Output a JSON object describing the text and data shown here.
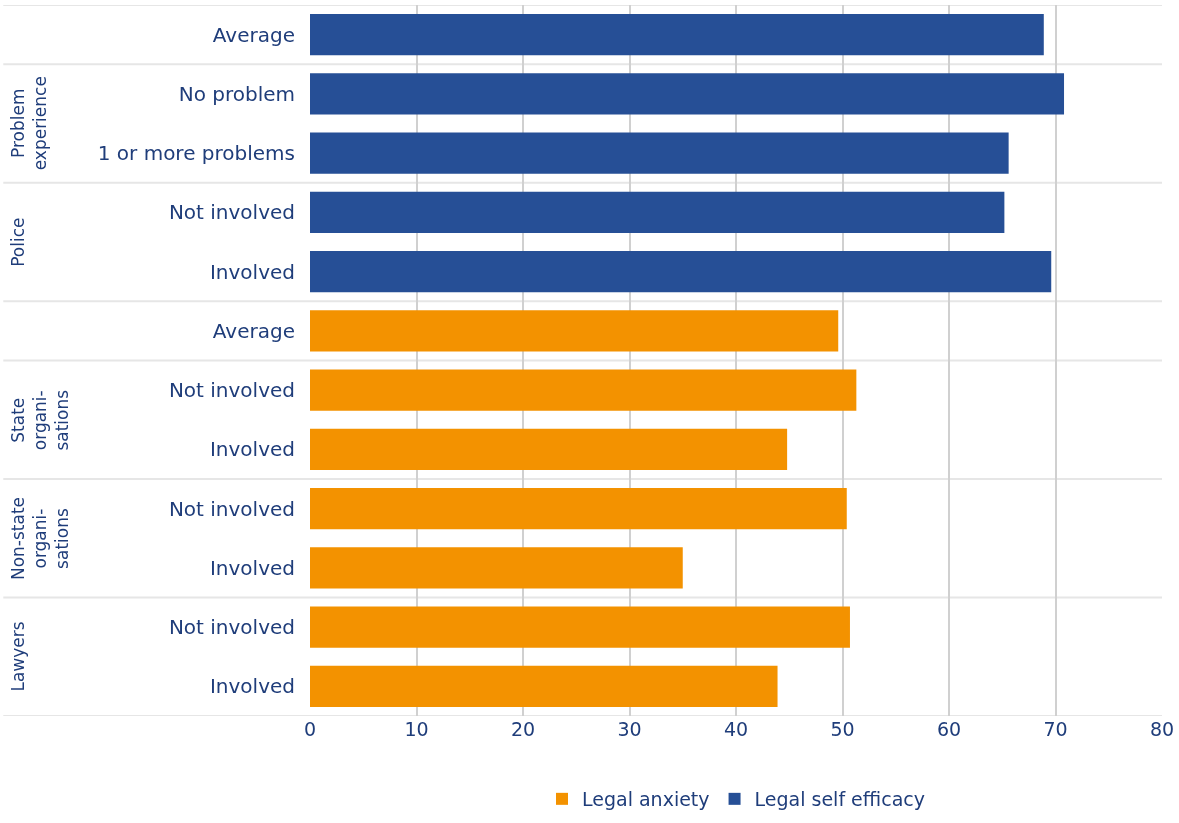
{
  "chart_data": {
    "type": "bar",
    "orientation": "horizontal",
    "categories": [
      "Average",
      "No problem",
      "1 or more problems",
      "Not involved",
      "Involved",
      "Average",
      "Not involved",
      "Involved",
      "Not involved",
      "Involved",
      "Not involved",
      "Involved"
    ],
    "series": [
      {
        "name": "Legal anxiety",
        "color": "#f39200",
        "values": [
          null,
          null,
          null,
          null,
          null,
          49.6,
          51.3,
          44.8,
          50.4,
          35.0,
          50.7,
          43.9
        ]
      },
      {
        "name": "Legal self efficacy",
        "color": "#264f96",
        "values": [
          68.9,
          70.8,
          65.6,
          65.2,
          69.6,
          null,
          null,
          null,
          null,
          null,
          null,
          null
        ]
      }
    ],
    "annotations": [
      "Problem\nexperience",
      "Police",
      "State\norgani-\nsations",
      "Non-state\norgani-\nsations",
      "Lawyers"
    ],
    "xlim": [
      0,
      80
    ],
    "xticks": [
      0,
      10,
      20,
      30,
      40,
      50,
      60,
      70,
      80
    ],
    "grid": "x",
    "legend": "bottom"
  }
}
